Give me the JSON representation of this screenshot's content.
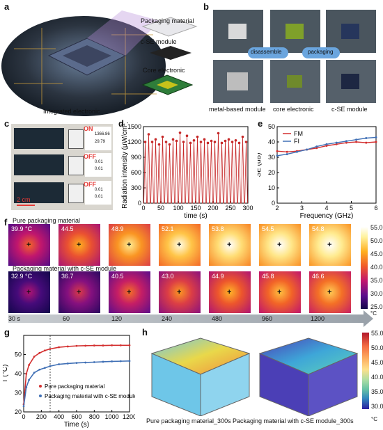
{
  "panels": {
    "a": {
      "label": "a",
      "layers": [
        "Packaging material",
        "c-SE module",
        "Core electronic"
      ],
      "caption": "Integrated electronic"
    },
    "b": {
      "label": "b",
      "arrows": [
        "disassemble",
        "packaging"
      ],
      "captions": [
        "metal-based module",
        "core electronic",
        "c-SE module"
      ]
    },
    "c": {
      "label": "c",
      "states": [
        "ON",
        "OFF",
        "OFF"
      ],
      "readings": [
        "1366.86",
        "29.79",
        "0.01",
        "0.01",
        "0.01",
        "0.01"
      ],
      "scalebar": "2 cm"
    },
    "d": {
      "label": "d"
    },
    "e": {
      "label": "e"
    },
    "f": {
      "label": "f",
      "row1_title": "Pure packaging material",
      "row2_title": "Packaging material with c-SE module",
      "row1_temps": [
        "39.9 °C",
        "44.5",
        "48.9",
        "52.1",
        "53.8",
        "54.5",
        "54.8"
      ],
      "row2_temps": [
        "32.9 °C",
        "36.7",
        "40.5",
        "43.0",
        "44.9",
        "45.8",
        "46.6"
      ],
      "times": [
        "30 s",
        "60",
        "120",
        "240",
        "480",
        "960",
        "1200"
      ],
      "colorbar_ticks": [
        "55.0",
        "50.0",
        "45.0",
        "40.0",
        "35.0",
        "30.0",
        "25.0"
      ],
      "colorbar_unit": "°C"
    },
    "g": {
      "label": "g"
    },
    "h": {
      "label": "h",
      "captions": [
        "Pure packaging material_300s",
        "Packaging material with c-SE module_300s"
      ],
      "colorbar_ticks": [
        "55.0",
        "50.0",
        "45.0",
        "40.0",
        "35.0",
        "30.0"
      ],
      "colorbar_unit": "°C"
    }
  },
  "chart_data": [
    {
      "type": "line",
      "panel": "d",
      "xlabel": "time (s)",
      "ylabel": "Radiation intensity (μW/cm²)",
      "xlim": [
        0,
        300
      ],
      "ylim": [
        0,
        1500
      ],
      "xticks": [
        "0",
        "50",
        "100",
        "150",
        "200",
        "250",
        "300"
      ],
      "yticks": [
        "0",
        "300",
        "600",
        "900",
        "1200",
        "1500"
      ],
      "color": "#c62828",
      "peaks_x": [
        5,
        15,
        25,
        35,
        45,
        55,
        65,
        75,
        85,
        95,
        105,
        115,
        125,
        135,
        145,
        155,
        165,
        175,
        185,
        195,
        205,
        215,
        225,
        235,
        245,
        255,
        265,
        275,
        285,
        295
      ],
      "peaks_y": [
        1200,
        1350,
        1200,
        1250,
        1150,
        1300,
        1200,
        1150,
        1250,
        1220,
        1380,
        1200,
        1320,
        1180,
        1230,
        1300,
        1200,
        1250,
        1180,
        1220,
        1200,
        1370,
        1180,
        1220,
        1250,
        1200,
        1230,
        1180,
        1300,
        1200
      ],
      "base_y": 0
    },
    {
      "type": "line",
      "panel": "e",
      "xlabel": "Frequency (GHz)",
      "ylabel": "SE (dB)",
      "xlim": [
        2,
        6
      ],
      "ylim": [
        0,
        50
      ],
      "xticks": [
        "2",
        "3",
        "4",
        "5",
        "6"
      ],
      "yticks": [
        "0",
        "10",
        "20",
        "30",
        "40",
        "50"
      ],
      "series": [
        {
          "name": "FM",
          "color": "#d32f2f",
          "x": [
            2.0,
            2.4,
            2.8,
            3.2,
            3.6,
            4.0,
            4.4,
            4.8,
            5.2,
            5.6,
            6.0
          ],
          "y": [
            34,
            33.5,
            34,
            35,
            36,
            37.5,
            38.5,
            39.5,
            40,
            39.5,
            40
          ]
        },
        {
          "name": "FI",
          "color": "#3f6fb5",
          "x": [
            2.0,
            2.4,
            2.8,
            3.2,
            3.6,
            4.0,
            4.4,
            4.8,
            5.2,
            5.6,
            6.0
          ],
          "y": [
            31,
            32,
            33.5,
            35,
            37,
            38.5,
            39.5,
            40.5,
            41.5,
            42.5,
            43
          ]
        }
      ]
    },
    {
      "type": "line",
      "panel": "g",
      "xlabel": "Time (s)",
      "ylabel": "T (°C)",
      "xlim": [
        0,
        1200
      ],
      "ylim": [
        20,
        60
      ],
      "xticks": [
        "0",
        "200",
        "400",
        "600",
        "800",
        "1000",
        "1200"
      ],
      "yticks": [
        "20",
        "30",
        "40",
        "50"
      ],
      "vline_x": 300,
      "series": [
        {
          "name": "Pure packaging material",
          "color": "#d32f2f",
          "x": [
            0,
            30,
            60,
            120,
            180,
            240,
            300,
            400,
            500,
            600,
            700,
            800,
            900,
            1000,
            1100,
            1200
          ],
          "y": [
            24,
            39.9,
            44.5,
            48.9,
            50.8,
            52.1,
            52.9,
            53.8,
            54.2,
            54.5,
            54.6,
            54.7,
            54.7,
            54.8,
            54.8,
            54.8
          ]
        },
        {
          "name": "Packaging material with c-SE module",
          "color": "#3f6fb5",
          "x": [
            0,
            30,
            60,
            120,
            180,
            240,
            300,
            400,
            500,
            600,
            700,
            800,
            900,
            1000,
            1100,
            1200
          ],
          "y": [
            23,
            32.9,
            36.7,
            40.5,
            42.1,
            43.0,
            43.9,
            44.9,
            45.3,
            45.6,
            45.8,
            46.0,
            46.2,
            46.4,
            46.5,
            46.6
          ]
        }
      ]
    }
  ]
}
